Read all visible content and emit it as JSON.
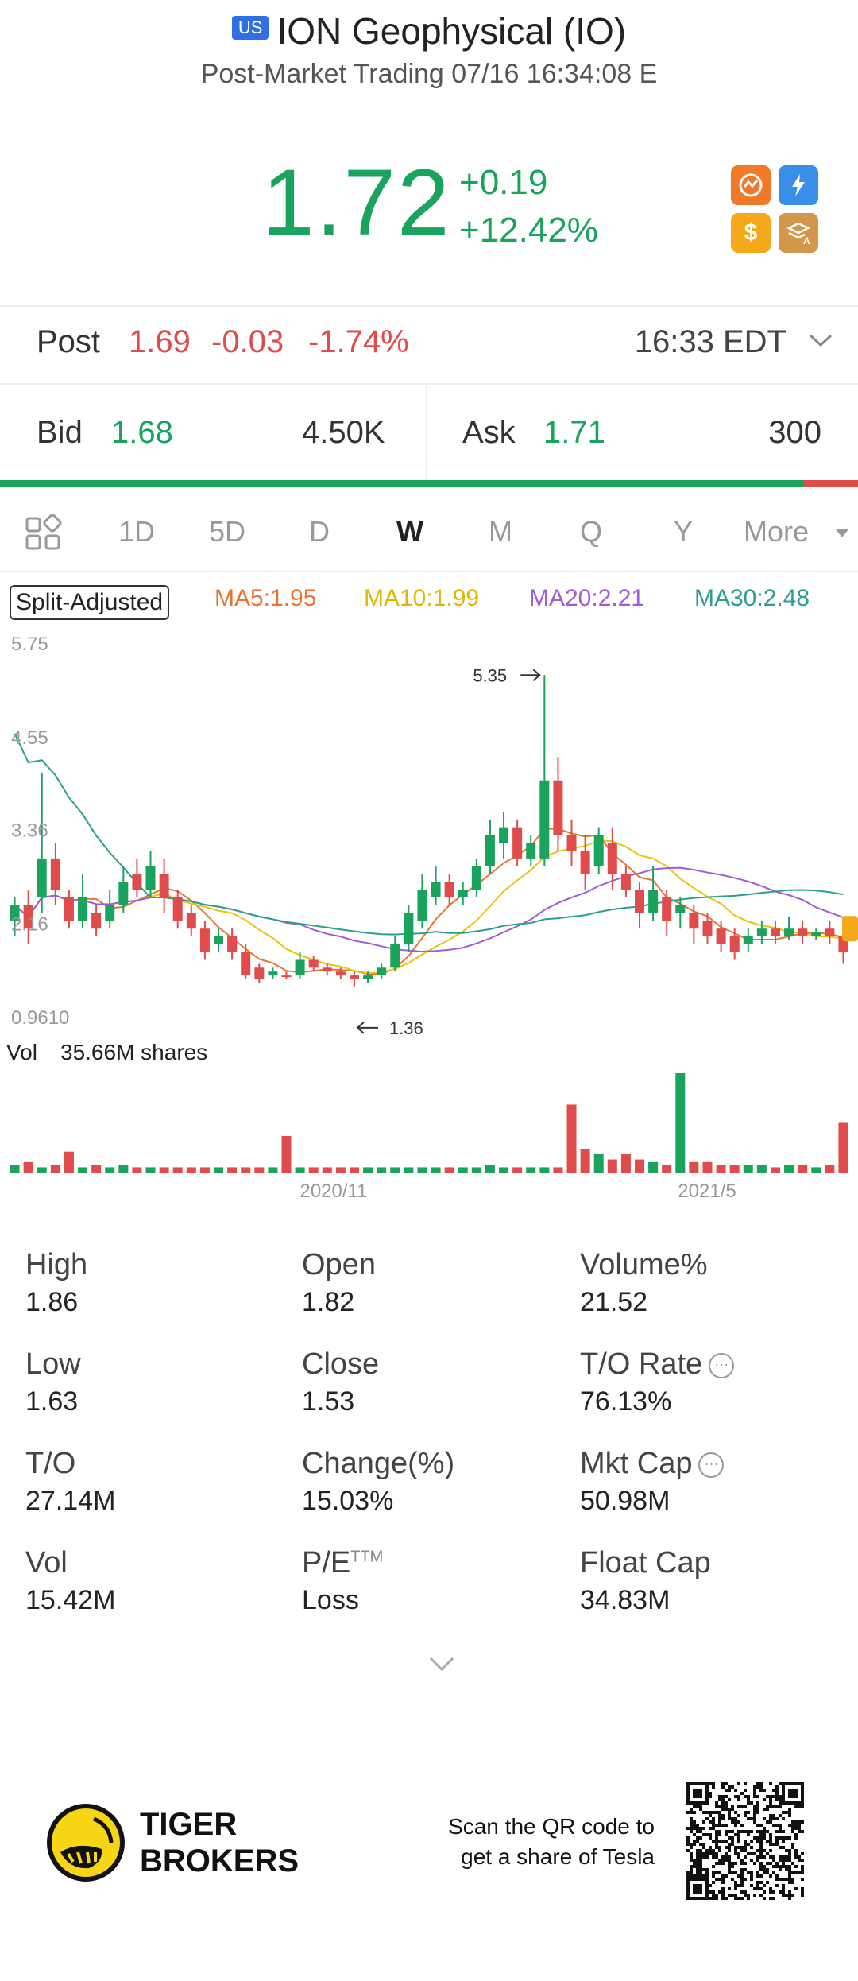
{
  "header": {
    "market_badge": "US",
    "title": "ION Geophysical (IO)",
    "subtitle": "Post-Market Trading 07/16 16:34:08 E"
  },
  "quote": {
    "price": "1.72",
    "change": "+0.19",
    "change_pct": "+12.42%",
    "color": "#1aa35c"
  },
  "post": {
    "label": "Post",
    "price": "1.69",
    "change": "-0.03",
    "change_pct": "-1.74%",
    "time": "16:33 EDT"
  },
  "bidask": {
    "bid_label": "Bid",
    "bid": "1.68",
    "bid_size": "4.50K",
    "ask_label": "Ask",
    "ask": "1.71",
    "ask_size": "300",
    "bid_ratio": 0.937
  },
  "tabs": [
    "1D",
    "5D",
    "D",
    "W",
    "M",
    "Q",
    "Y"
  ],
  "tabs_selected": "W",
  "tab_more": "More",
  "ma_legend": {
    "split": "Split-Adjusted",
    "ma5": "MA5:1.95",
    "ma10": "MA10:1.99",
    "ma20": "MA20:2.21",
    "ma30": "MA30:2.48",
    "colors": {
      "ma5": "#e8742f",
      "ma10": "#e9c40f",
      "ma20": "#a05bd6",
      "ma30": "#2b9e90"
    }
  },
  "chart_data": {
    "type": "candlestick",
    "y_ticks": [
      "5.75",
      "4.55",
      "3.36",
      "2.16",
      "0.9610"
    ],
    "y_range": [
      0.961,
      5.75
    ],
    "high_marker": "5.35",
    "low_marker": "1.36",
    "x_labels": [
      "2020/11",
      "2021/5"
    ],
    "volume_label": "Vol",
    "volume_value": "35.66M shares",
    "candles": [
      [
        2.2,
        2.4,
        2.0,
        2.5,
        1
      ],
      [
        2.4,
        2.1,
        1.9,
        2.6,
        0
      ],
      [
        2.5,
        3.0,
        2.3,
        4.1,
        1
      ],
      [
        3.0,
        2.6,
        2.4,
        3.2,
        0
      ],
      [
        2.5,
        2.2,
        2.1,
        2.6,
        0
      ],
      [
        2.2,
        2.5,
        2.1,
        2.8,
        1
      ],
      [
        2.3,
        2.1,
        2.0,
        2.4,
        0
      ],
      [
        2.2,
        2.4,
        2.1,
        2.6,
        1
      ],
      [
        2.4,
        2.7,
        2.3,
        2.9,
        1
      ],
      [
        2.8,
        2.6,
        2.5,
        3.0,
        0
      ],
      [
        2.6,
        2.9,
        2.5,
        3.1,
        1
      ],
      [
        2.8,
        2.5,
        2.3,
        3.0,
        0
      ],
      [
        2.5,
        2.2,
        2.1,
        2.6,
        0
      ],
      [
        2.3,
        2.1,
        2.0,
        2.4,
        0
      ],
      [
        2.1,
        1.8,
        1.7,
        2.2,
        0
      ],
      [
        1.9,
        2.0,
        1.8,
        2.1,
        1
      ],
      [
        2.0,
        1.8,
        1.7,
        2.1,
        0
      ],
      [
        1.8,
        1.5,
        1.45,
        1.9,
        0
      ],
      [
        1.6,
        1.45,
        1.4,
        1.65,
        0
      ],
      [
        1.5,
        1.55,
        1.45,
        1.6,
        1
      ],
      [
        1.5,
        1.5,
        1.45,
        1.55,
        0
      ],
      [
        1.5,
        1.7,
        1.45,
        1.8,
        1
      ],
      [
        1.7,
        1.6,
        1.55,
        1.75,
        0
      ],
      [
        1.6,
        1.55,
        1.5,
        1.65,
        0
      ],
      [
        1.55,
        1.5,
        1.45,
        1.6,
        0
      ],
      [
        1.5,
        1.45,
        1.36,
        1.55,
        0
      ],
      [
        1.45,
        1.5,
        1.4,
        1.55,
        1
      ],
      [
        1.5,
        1.6,
        1.45,
        1.65,
        1
      ],
      [
        1.6,
        1.9,
        1.55,
        2.0,
        1
      ],
      [
        1.9,
        2.3,
        1.8,
        2.4,
        1
      ],
      [
        2.2,
        2.6,
        2.1,
        2.8,
        1
      ],
      [
        2.5,
        2.7,
        2.4,
        2.9,
        1
      ],
      [
        2.7,
        2.5,
        2.4,
        2.8,
        0
      ],
      [
        2.5,
        2.6,
        2.4,
        2.7,
        1
      ],
      [
        2.6,
        2.9,
        2.5,
        3.0,
        1
      ],
      [
        2.9,
        3.3,
        2.8,
        3.5,
        1
      ],
      [
        3.2,
        3.4,
        3.0,
        3.6,
        1
      ],
      [
        3.4,
        3.0,
        2.9,
        3.5,
        0
      ],
      [
        3.0,
        3.2,
        2.9,
        3.3,
        1
      ],
      [
        3.0,
        4.0,
        2.9,
        5.35,
        1
      ],
      [
        4.0,
        3.3,
        3.1,
        4.3,
        0
      ],
      [
        3.3,
        3.1,
        2.9,
        3.5,
        0
      ],
      [
        3.1,
        2.8,
        2.6,
        3.3,
        0
      ],
      [
        2.9,
        3.3,
        2.8,
        3.4,
        1
      ],
      [
        3.2,
        2.8,
        2.6,
        3.4,
        0
      ],
      [
        2.8,
        2.6,
        2.5,
        2.9,
        0
      ],
      [
        2.6,
        2.3,
        2.1,
        2.7,
        0
      ],
      [
        2.3,
        2.6,
        2.2,
        2.9,
        1
      ],
      [
        2.5,
        2.2,
        2.0,
        2.6,
        0
      ],
      [
        2.3,
        2.4,
        2.1,
        2.5,
        1
      ],
      [
        2.3,
        2.1,
        1.9,
        2.4,
        0
      ],
      [
        2.2,
        2.0,
        1.9,
        2.3,
        0
      ],
      [
        2.1,
        1.9,
        1.8,
        2.2,
        0
      ],
      [
        2.0,
        1.8,
        1.7,
        2.1,
        0
      ],
      [
        1.9,
        2.0,
        1.8,
        2.1,
        1
      ],
      [
        2.0,
        2.1,
        1.9,
        2.2,
        1
      ],
      [
        2.1,
        2.0,
        1.9,
        2.2,
        0
      ],
      [
        2.0,
        2.1,
        1.95,
        2.25,
        1
      ],
      [
        2.1,
        2.0,
        1.9,
        2.2,
        0
      ],
      [
        2.0,
        2.05,
        1.95,
        2.1,
        1
      ],
      [
        2.1,
        2.0,
        1.9,
        2.2,
        0
      ],
      [
        2.0,
        1.8,
        1.65,
        2.0,
        0
      ]
    ],
    "volumes": [
      3,
      4,
      2,
      3,
      8,
      2,
      3,
      2,
      3,
      2,
      2,
      2,
      2,
      2,
      2,
      2,
      2,
      2,
      2,
      2,
      14,
      2,
      2,
      2,
      2,
      2,
      2,
      2,
      2,
      2,
      2,
      2,
      2,
      2,
      2,
      3,
      2,
      2,
      2,
      2,
      2,
      26,
      9,
      7,
      5,
      7,
      5,
      4,
      3,
      38,
      4,
      4,
      3,
      3,
      3,
      3,
      2,
      3,
      3,
      2,
      3,
      19
    ],
    "colors": {
      "up": "#1aa35c",
      "down": "#e04b4b"
    }
  },
  "stats": [
    {
      "label": "High",
      "value": "1.86"
    },
    {
      "label": "Open",
      "value": "1.82"
    },
    {
      "label": "Volume%",
      "value": "21.52"
    },
    {
      "label": "Low",
      "value": "1.63"
    },
    {
      "label": "Close",
      "value": "1.53"
    },
    {
      "label": "T/O Rate",
      "value": "76.13%",
      "info": true
    },
    {
      "label": "T/O",
      "value": "27.14M"
    },
    {
      "label": "Change(%)",
      "value": "15.03%"
    },
    {
      "label": "Mkt Cap",
      "value": "50.98M",
      "info": true
    },
    {
      "label": "Vol",
      "value": "15.42M"
    },
    {
      "label": "P/E",
      "sup": "TTM",
      "value": "Loss"
    },
    {
      "label": "Float Cap",
      "value": "34.83M"
    }
  ],
  "footer": {
    "brand_line1": "TIGER",
    "brand_line2": "BROKERS",
    "qr_text1": "Scan the QR code to",
    "qr_text2": "get a share of Tesla"
  }
}
